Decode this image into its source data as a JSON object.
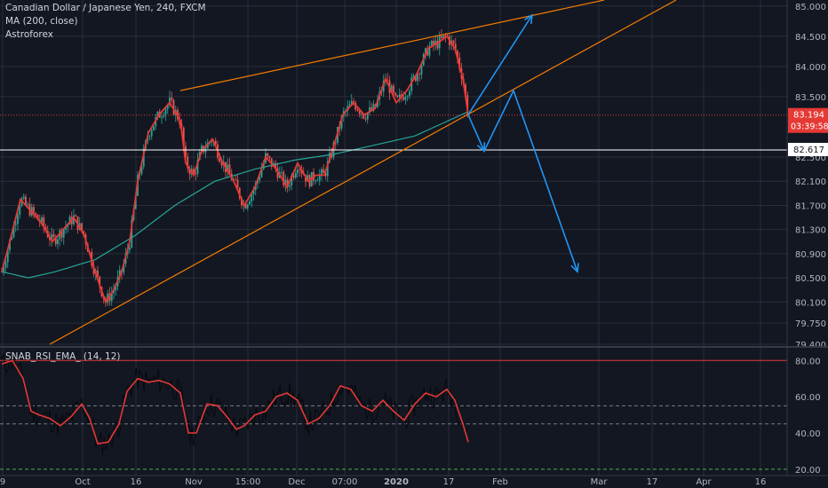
{
  "header": {
    "symbol_title": "Canadian Dollar / Japanese Yen, 240, FXCM",
    "indicator_ma": "MA (200, close)",
    "indicator_custom": "Astroforex",
    "rsi_title": "SNAB_RSI_EMA_ (14, 12)"
  },
  "colors": {
    "background": "#131722",
    "grid": "#2a2e39",
    "axis_text": "#b2b5be",
    "candle_up": "#26a69a",
    "candle_down": "#ef5350",
    "price_smooth": "#e53935",
    "ma200": "#26a69a",
    "trendline": "#f57c00",
    "projection": "#2196f3",
    "last_price_line": "#e53935",
    "support_line": "#ffffff",
    "rsi_line": "#e53935",
    "rsi_raw": "#000000",
    "rsi_upper": "#e53935",
    "rsi_lower": "#4caf50"
  },
  "chart_data": [
    {
      "type": "candlestick",
      "title": "Canadian Dollar / Japanese Yen, 240, FXCM",
      "ylim": [
        79.4,
        85.1
      ],
      "y_ticks": [
        "85.000",
        "84.500",
        "84.000",
        "83.500",
        "83.194",
        "82.617",
        "82.500",
        "82.100",
        "81.700",
        "81.300",
        "80.900",
        "80.500",
        "80.100",
        "79.750",
        "79.400"
      ],
      "x_ticks": [
        "9",
        "Oct",
        "16",
        "Nov",
        "15:00",
        "Dec",
        "07:00",
        "2020",
        "17",
        "Feb",
        "Mar",
        "17",
        "Apr",
        "16"
      ],
      "last_price": {
        "value": 83.194,
        "label": "83.194",
        "countdown": "03:39:58"
      },
      "horizontal_level": {
        "value": 82.617,
        "label": "82.617"
      },
      "series": [
        {
          "name": "price",
          "points": [
            {
              "t": 0,
              "v": 80.6
            },
            {
              "t": 3,
              "v": 81.1
            },
            {
              "t": 7,
              "v": 81.8
            },
            {
              "t": 11,
              "v": 81.6
            },
            {
              "t": 15,
              "v": 81.4
            },
            {
              "t": 19,
              "v": 81.1
            },
            {
              "t": 23,
              "v": 81.3
            },
            {
              "t": 27,
              "v": 81.5
            },
            {
              "t": 31,
              "v": 81.2
            },
            {
              "t": 35,
              "v": 80.6
            },
            {
              "t": 39,
              "v": 80.1
            },
            {
              "t": 42,
              "v": 80.3
            },
            {
              "t": 45,
              "v": 80.6
            },
            {
              "t": 48,
              "v": 81.1
            },
            {
              "t": 51,
              "v": 82.1
            },
            {
              "t": 55,
              "v": 82.9
            },
            {
              "t": 59,
              "v": 83.2
            },
            {
              "t": 63,
              "v": 83.4
            },
            {
              "t": 67,
              "v": 83.1
            },
            {
              "t": 69,
              "v": 82.4
            },
            {
              "t": 72,
              "v": 82.2
            },
            {
              "t": 75,
              "v": 82.6
            },
            {
              "t": 79,
              "v": 82.8
            },
            {
              "t": 83,
              "v": 82.4
            },
            {
              "t": 87,
              "v": 82.1
            },
            {
              "t": 91,
              "v": 81.7
            },
            {
              "t": 95,
              "v": 82.0
            },
            {
              "t": 99,
              "v": 82.5
            },
            {
              "t": 103,
              "v": 82.3
            },
            {
              "t": 107,
              "v": 82.0
            },
            {
              "t": 111,
              "v": 82.4
            },
            {
              "t": 115,
              "v": 82.1
            },
            {
              "t": 118,
              "v": 82.2
            },
            {
              "t": 121,
              "v": 82.2
            },
            {
              "t": 124,
              "v": 82.6
            },
            {
              "t": 128,
              "v": 83.2
            },
            {
              "t": 132,
              "v": 83.4
            },
            {
              "t": 136,
              "v": 83.2
            },
            {
              "t": 140,
              "v": 83.3
            },
            {
              "t": 144,
              "v": 83.8
            },
            {
              "t": 148,
              "v": 83.4
            },
            {
              "t": 152,
              "v": 83.6
            },
            {
              "t": 156,
              "v": 83.9
            },
            {
              "t": 160,
              "v": 84.3
            },
            {
              "t": 164,
              "v": 84.4
            },
            {
              "t": 167,
              "v": 84.5
            },
            {
              "t": 170,
              "v": 84.3
            },
            {
              "t": 173,
              "v": 83.8
            },
            {
              "t": 175,
              "v": 83.2
            }
          ]
        },
        {
          "name": "MA (200, close)",
          "points": [
            {
              "t": 0,
              "v": 80.6
            },
            {
              "t": 10,
              "v": 80.5
            },
            {
              "t": 20,
              "v": 80.6
            },
            {
              "t": 35,
              "v": 80.8
            },
            {
              "t": 50,
              "v": 81.2
            },
            {
              "t": 65,
              "v": 81.7
            },
            {
              "t": 80,
              "v": 82.1
            },
            {
              "t": 95,
              "v": 82.3
            },
            {
              "t": 110,
              "v": 82.45
            },
            {
              "t": 125,
              "v": 82.55
            },
            {
              "t": 140,
              "v": 82.7
            },
            {
              "t": 155,
              "v": 82.85
            },
            {
              "t": 165,
              "v": 83.05
            },
            {
              "t": 175,
              "v": 83.25
            }
          ]
        }
      ],
      "trendlines": [
        {
          "name": "upper-channel-line",
          "from": {
            "t": 67,
            "v": 83.6
          },
          "to": {
            "t": 168,
            "v": 84.55
          }
        },
        {
          "name": "upper-channel-extension",
          "from": {
            "t": 168,
            "v": 84.55
          },
          "to": {
            "t": 226,
            "v": 85.1
          }
        },
        {
          "name": "rising-support-line",
          "from": {
            "t": 18,
            "v": 79.4
          },
          "to": {
            "t": 253,
            "v": 85.1
          }
        }
      ],
      "projections": [
        {
          "name": "bullish-path",
          "points": [
            {
              "t": 175,
              "v": 83.2
            },
            {
              "t": 199,
              "v": 84.85
            }
          ]
        },
        {
          "name": "bearish-path",
          "points": [
            {
              "t": 175,
              "v": 83.2
            },
            {
              "t": 181,
              "v": 82.6
            },
            {
              "t": 192,
              "v": 83.6
            },
            {
              "t": 216,
              "v": 80.6
            }
          ]
        }
      ]
    },
    {
      "type": "line",
      "title": "SNAB_RSI_EMA_ (14, 12)",
      "ylim": [
        16.5,
        86.0
      ],
      "y_ticks": [
        "80.00",
        "60.00",
        "40.00",
        "20.00"
      ],
      "levels": [
        {
          "name": "overbought",
          "value": 80
        },
        {
          "name": "upper-mid",
          "value": 55
        },
        {
          "name": "lower-mid",
          "value": 45
        },
        {
          "name": "oversold",
          "value": 20
        }
      ],
      "series": [
        {
          "name": "rsi-ema",
          "points": [
            {
              "t": 0,
              "v": 78
            },
            {
              "t": 4,
              "v": 80
            },
            {
              "t": 8,
              "v": 70
            },
            {
              "t": 11,
              "v": 52
            },
            {
              "t": 14,
              "v": 50
            },
            {
              "t": 18,
              "v": 48
            },
            {
              "t": 22,
              "v": 44
            },
            {
              "t": 26,
              "v": 49
            },
            {
              "t": 30,
              "v": 56
            },
            {
              "t": 33,
              "v": 48
            },
            {
              "t": 36,
              "v": 34
            },
            {
              "t": 40,
              "v": 35
            },
            {
              "t": 44,
              "v": 45
            },
            {
              "t": 47,
              "v": 63
            },
            {
              "t": 51,
              "v": 70
            },
            {
              "t": 55,
              "v": 68
            },
            {
              "t": 59,
              "v": 69
            },
            {
              "t": 63,
              "v": 67
            },
            {
              "t": 67,
              "v": 62
            },
            {
              "t": 70,
              "v": 40
            },
            {
              "t": 73,
              "v": 40
            },
            {
              "t": 77,
              "v": 56
            },
            {
              "t": 81,
              "v": 55
            },
            {
              "t": 85,
              "v": 48
            },
            {
              "t": 88,
              "v": 42
            },
            {
              "t": 91,
              "v": 44
            },
            {
              "t": 95,
              "v": 50
            },
            {
              "t": 99,
              "v": 52
            },
            {
              "t": 103,
              "v": 60
            },
            {
              "t": 107,
              "v": 62
            },
            {
              "t": 111,
              "v": 58
            },
            {
              "t": 115,
              "v": 45
            },
            {
              "t": 119,
              "v": 48
            },
            {
              "t": 123,
              "v": 55
            },
            {
              "t": 127,
              "v": 66
            },
            {
              "t": 131,
              "v": 64
            },
            {
              "t": 135,
              "v": 55
            },
            {
              "t": 139,
              "v": 52
            },
            {
              "t": 143,
              "v": 58
            },
            {
              "t": 147,
              "v": 52
            },
            {
              "t": 151,
              "v": 47
            },
            {
              "t": 155,
              "v": 56
            },
            {
              "t": 159,
              "v": 62
            },
            {
              "t": 163,
              "v": 60
            },
            {
              "t": 167,
              "v": 64
            },
            {
              "t": 170,
              "v": 58
            },
            {
              "t": 173,
              "v": 45
            },
            {
              "t": 175,
              "v": 35
            }
          ]
        }
      ]
    }
  ]
}
